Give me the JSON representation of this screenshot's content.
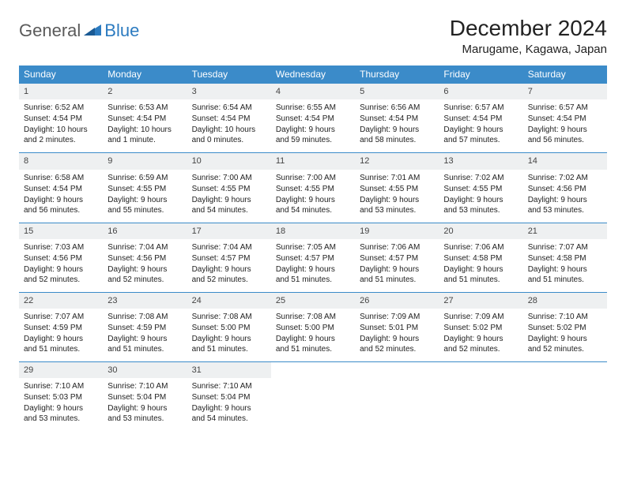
{
  "logo": {
    "general": "General",
    "blue": "Blue"
  },
  "title": "December 2024",
  "location": "Marugame, Kagawa, Japan",
  "accent_color": "#3b8bc9",
  "header_bg": "#eef0f1",
  "weekdays": [
    "Sunday",
    "Monday",
    "Tuesday",
    "Wednesday",
    "Thursday",
    "Friday",
    "Saturday"
  ],
  "weeks": [
    [
      {
        "n": "1",
        "sr": "Sunrise: 6:52 AM",
        "ss": "Sunset: 4:54 PM",
        "dl": "Daylight: 10 hours and 2 minutes."
      },
      {
        "n": "2",
        "sr": "Sunrise: 6:53 AM",
        "ss": "Sunset: 4:54 PM",
        "dl": "Daylight: 10 hours and 1 minute."
      },
      {
        "n": "3",
        "sr": "Sunrise: 6:54 AM",
        "ss": "Sunset: 4:54 PM",
        "dl": "Daylight: 10 hours and 0 minutes."
      },
      {
        "n": "4",
        "sr": "Sunrise: 6:55 AM",
        "ss": "Sunset: 4:54 PM",
        "dl": "Daylight: 9 hours and 59 minutes."
      },
      {
        "n": "5",
        "sr": "Sunrise: 6:56 AM",
        "ss": "Sunset: 4:54 PM",
        "dl": "Daylight: 9 hours and 58 minutes."
      },
      {
        "n": "6",
        "sr": "Sunrise: 6:57 AM",
        "ss": "Sunset: 4:54 PM",
        "dl": "Daylight: 9 hours and 57 minutes."
      },
      {
        "n": "7",
        "sr": "Sunrise: 6:57 AM",
        "ss": "Sunset: 4:54 PM",
        "dl": "Daylight: 9 hours and 56 minutes."
      }
    ],
    [
      {
        "n": "8",
        "sr": "Sunrise: 6:58 AM",
        "ss": "Sunset: 4:54 PM",
        "dl": "Daylight: 9 hours and 56 minutes."
      },
      {
        "n": "9",
        "sr": "Sunrise: 6:59 AM",
        "ss": "Sunset: 4:55 PM",
        "dl": "Daylight: 9 hours and 55 minutes."
      },
      {
        "n": "10",
        "sr": "Sunrise: 7:00 AM",
        "ss": "Sunset: 4:55 PM",
        "dl": "Daylight: 9 hours and 54 minutes."
      },
      {
        "n": "11",
        "sr": "Sunrise: 7:00 AM",
        "ss": "Sunset: 4:55 PM",
        "dl": "Daylight: 9 hours and 54 minutes."
      },
      {
        "n": "12",
        "sr": "Sunrise: 7:01 AM",
        "ss": "Sunset: 4:55 PM",
        "dl": "Daylight: 9 hours and 53 minutes."
      },
      {
        "n": "13",
        "sr": "Sunrise: 7:02 AM",
        "ss": "Sunset: 4:55 PM",
        "dl": "Daylight: 9 hours and 53 minutes."
      },
      {
        "n": "14",
        "sr": "Sunrise: 7:02 AM",
        "ss": "Sunset: 4:56 PM",
        "dl": "Daylight: 9 hours and 53 minutes."
      }
    ],
    [
      {
        "n": "15",
        "sr": "Sunrise: 7:03 AM",
        "ss": "Sunset: 4:56 PM",
        "dl": "Daylight: 9 hours and 52 minutes."
      },
      {
        "n": "16",
        "sr": "Sunrise: 7:04 AM",
        "ss": "Sunset: 4:56 PM",
        "dl": "Daylight: 9 hours and 52 minutes."
      },
      {
        "n": "17",
        "sr": "Sunrise: 7:04 AM",
        "ss": "Sunset: 4:57 PM",
        "dl": "Daylight: 9 hours and 52 minutes."
      },
      {
        "n": "18",
        "sr": "Sunrise: 7:05 AM",
        "ss": "Sunset: 4:57 PM",
        "dl": "Daylight: 9 hours and 51 minutes."
      },
      {
        "n": "19",
        "sr": "Sunrise: 7:06 AM",
        "ss": "Sunset: 4:57 PM",
        "dl": "Daylight: 9 hours and 51 minutes."
      },
      {
        "n": "20",
        "sr": "Sunrise: 7:06 AM",
        "ss": "Sunset: 4:58 PM",
        "dl": "Daylight: 9 hours and 51 minutes."
      },
      {
        "n": "21",
        "sr": "Sunrise: 7:07 AM",
        "ss": "Sunset: 4:58 PM",
        "dl": "Daylight: 9 hours and 51 minutes."
      }
    ],
    [
      {
        "n": "22",
        "sr": "Sunrise: 7:07 AM",
        "ss": "Sunset: 4:59 PM",
        "dl": "Daylight: 9 hours and 51 minutes."
      },
      {
        "n": "23",
        "sr": "Sunrise: 7:08 AM",
        "ss": "Sunset: 4:59 PM",
        "dl": "Daylight: 9 hours and 51 minutes."
      },
      {
        "n": "24",
        "sr": "Sunrise: 7:08 AM",
        "ss": "Sunset: 5:00 PM",
        "dl": "Daylight: 9 hours and 51 minutes."
      },
      {
        "n": "25",
        "sr": "Sunrise: 7:08 AM",
        "ss": "Sunset: 5:00 PM",
        "dl": "Daylight: 9 hours and 51 minutes."
      },
      {
        "n": "26",
        "sr": "Sunrise: 7:09 AM",
        "ss": "Sunset: 5:01 PM",
        "dl": "Daylight: 9 hours and 52 minutes."
      },
      {
        "n": "27",
        "sr": "Sunrise: 7:09 AM",
        "ss": "Sunset: 5:02 PM",
        "dl": "Daylight: 9 hours and 52 minutes."
      },
      {
        "n": "28",
        "sr": "Sunrise: 7:10 AM",
        "ss": "Sunset: 5:02 PM",
        "dl": "Daylight: 9 hours and 52 minutes."
      }
    ],
    [
      {
        "n": "29",
        "sr": "Sunrise: 7:10 AM",
        "ss": "Sunset: 5:03 PM",
        "dl": "Daylight: 9 hours and 53 minutes."
      },
      {
        "n": "30",
        "sr": "Sunrise: 7:10 AM",
        "ss": "Sunset: 5:04 PM",
        "dl": "Daylight: 9 hours and 53 minutes."
      },
      {
        "n": "31",
        "sr": "Sunrise: 7:10 AM",
        "ss": "Sunset: 5:04 PM",
        "dl": "Daylight: 9 hours and 54 minutes."
      },
      null,
      null,
      null,
      null
    ]
  ]
}
